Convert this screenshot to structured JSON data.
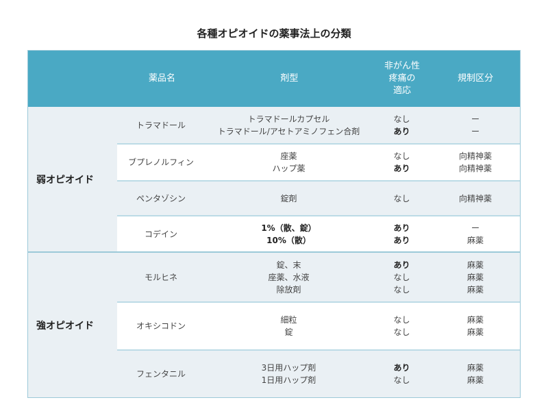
{
  "title": "各種オピオイドの薬事法上の分類",
  "header": {
    "name": "薬品名",
    "form": "剤型",
    "noncancer": "非がん性\n疼痛の\n適応",
    "regulation": "規制区分"
  },
  "colors": {
    "header": "#4aa9c4",
    "row_shade": "#eaf0f4"
  },
  "groups": [
    {
      "label": "弱オピオイド",
      "rows": [
        {
          "name": "トラマドール",
          "forms": [
            "トラマドールカプセル",
            "トラマドール/アセトアミノフェン合剤"
          ],
          "noncancer": [
            "なし",
            "あり"
          ],
          "regulation": [
            "ー",
            "ー"
          ]
        },
        {
          "name": "ブプレノルフィン",
          "forms": [
            "座薬",
            "ハップ薬"
          ],
          "noncancer": [
            "なし",
            "あり"
          ],
          "regulation": [
            "向精神薬",
            "向精神薬"
          ]
        },
        {
          "name": "ペンタゾシン",
          "forms": [
            "錠剤"
          ],
          "noncancer": [
            "なし"
          ],
          "regulation": [
            "向精神薬"
          ]
        },
        {
          "name": "コデイン",
          "forms": [
            "1%（散、錠）",
            "10%（散）"
          ],
          "noncancer": [
            "あり",
            "あり"
          ],
          "regulation": [
            "ー",
            "麻薬"
          ]
        }
      ]
    },
    {
      "label": "強オピオイド",
      "rows": [
        {
          "name": "モルヒネ",
          "forms": [
            "錠、末",
            "座薬、水液",
            "除放剤"
          ],
          "noncancer": [
            "あり",
            "なし",
            "なし"
          ],
          "regulation": [
            "麻薬",
            "麻薬",
            "麻薬"
          ]
        },
        {
          "name": "オキシコドン",
          "forms": [
            "細粒",
            "錠"
          ],
          "noncancer": [
            "なし",
            "なし"
          ],
          "regulation": [
            "麻薬",
            "麻薬"
          ]
        },
        {
          "name": "フェンタニル",
          "forms": [
            "3日用ハップ剤",
            "1日用ハップ剤"
          ],
          "noncancer": [
            "あり",
            "なし"
          ],
          "regulation": [
            "麻薬",
            "麻薬"
          ]
        }
      ]
    }
  ]
}
